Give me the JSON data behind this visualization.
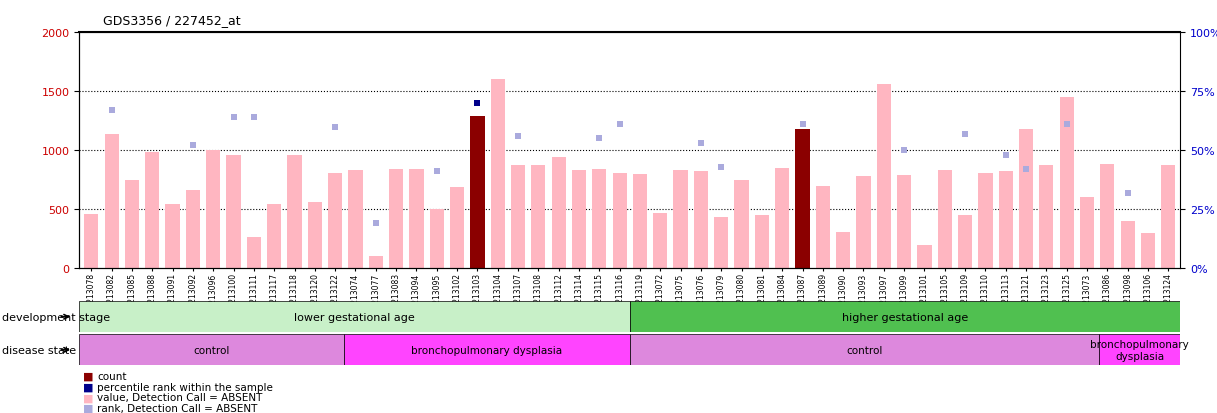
{
  "title": "GDS3356 / 227452_at",
  "samples": [
    "GSM213078",
    "GSM213082",
    "GSM213085",
    "GSM213088",
    "GSM213091",
    "GSM213092",
    "GSM213096",
    "GSM213100",
    "GSM213111",
    "GSM213117",
    "GSM213118",
    "GSM213120",
    "GSM213122",
    "GSM213074",
    "GSM213077",
    "GSM213083",
    "GSM213094",
    "GSM213095",
    "GSM213102",
    "GSM213103",
    "GSM213104",
    "GSM213107",
    "GSM213108",
    "GSM213112",
    "GSM213114",
    "GSM213115",
    "GSM213116",
    "GSM213119",
    "GSM213072",
    "GSM213075",
    "GSM213076",
    "GSM213079",
    "GSM213080",
    "GSM213081",
    "GSM213084",
    "GSM213087",
    "GSM213089",
    "GSM213090",
    "GSM213093",
    "GSM213097",
    "GSM213099",
    "GSM213101",
    "GSM213105",
    "GSM213109",
    "GSM213110",
    "GSM213113",
    "GSM213121",
    "GSM213123",
    "GSM213125",
    "GSM213073",
    "GSM213086",
    "GSM213098",
    "GSM213106",
    "GSM213124"
  ],
  "bar_values": [
    460,
    1140,
    750,
    980,
    540,
    660,
    1000,
    960,
    260,
    540,
    960,
    560,
    810,
    830,
    100,
    840,
    840,
    500,
    690,
    1290,
    1600,
    870,
    870,
    940,
    830,
    840,
    810,
    800,
    470,
    830,
    820,
    430,
    750,
    450,
    850,
    1180,
    700,
    310,
    780,
    1560,
    790,
    200,
    830,
    450,
    810,
    820,
    1180,
    870,
    1450,
    600,
    880,
    400,
    300,
    870
  ],
  "rank_values_pct": [
    null,
    67,
    null,
    null,
    null,
    52,
    null,
    64,
    64,
    null,
    null,
    null,
    60,
    null,
    19,
    null,
    null,
    41,
    null,
    70,
    null,
    56,
    null,
    null,
    null,
    55,
    61,
    null,
    null,
    null,
    53,
    43,
    null,
    null,
    null,
    61,
    null,
    null,
    null,
    null,
    50,
    null,
    null,
    57,
    null,
    48,
    42,
    null,
    61,
    null,
    null,
    32,
    null,
    null
  ],
  "highlight_rank_dark": [
    19,
    39
  ],
  "highlight_bars": [
    19,
    35
  ],
  "bar_color_normal": "#FFB6C1",
  "bar_color_highlight": "#8B0000",
  "rank_color_dark": "#00008B",
  "rank_color_light": "#AAAADD",
  "left_yticks": [
    0,
    500,
    1000,
    1500,
    2000
  ],
  "right_yticks": [
    0,
    25,
    50,
    75,
    100
  ],
  "ylim_left": [
    0,
    2000
  ],
  "ylim_right": [
    0,
    100
  ],
  "dotted_lines_pct": [
    25,
    50,
    75
  ],
  "dev_stage_groups": [
    {
      "label": "lower gestational age",
      "start": 0,
      "end": 27,
      "color": "#C8F0C8"
    },
    {
      "label": "higher gestational age",
      "start": 27,
      "end": 54,
      "color": "#50C050"
    }
  ],
  "disease_groups": [
    {
      "label": "control",
      "start": 0,
      "end": 13,
      "color": "#DD88DD"
    },
    {
      "label": "bronchopulmonary dysplasia",
      "start": 13,
      "end": 27,
      "color": "#FF44FF"
    },
    {
      "label": "control",
      "start": 27,
      "end": 50,
      "color": "#DD88DD"
    },
    {
      "label": "bronchopulmonary\ndysplasia",
      "start": 50,
      "end": 54,
      "color": "#FF44FF"
    }
  ],
  "legend_items": [
    {
      "label": "count",
      "color": "#8B0000"
    },
    {
      "label": "percentile rank within the sample",
      "color": "#00008B"
    },
    {
      "label": "value, Detection Call = ABSENT",
      "color": "#FFB6C1"
    },
    {
      "label": "rank, Detection Call = ABSENT",
      "color": "#AAAADD"
    }
  ],
  "dev_label": "development stage",
  "disease_label": "disease state",
  "bg_color": "#FFFFFF",
  "tick_label_color_left": "#CC0000",
  "tick_label_color_right": "#0000CC",
  "bar_width": 0.7
}
